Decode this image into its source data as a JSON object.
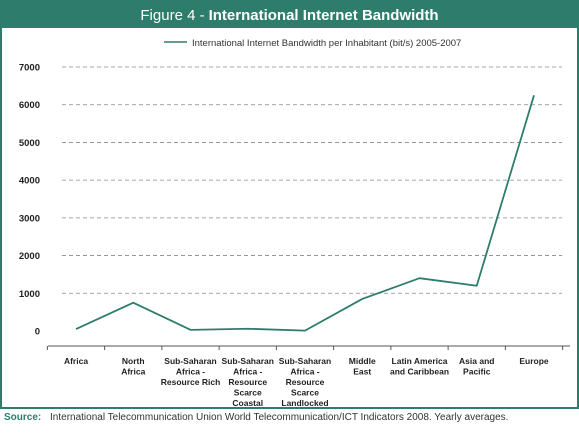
{
  "figure": {
    "prefix": "Figure 4 -",
    "title": "International Internet Bandwidth"
  },
  "source": {
    "label": "Source:",
    "text": "International Telecommunication Union World Telecommunication/ICT Indicators 2008. Yearly averages."
  },
  "colors": {
    "accent": "#2e7d6c",
    "line": "#2e7d6c",
    "grid": "#888888"
  },
  "chart_data": {
    "type": "line",
    "legend_position": "top-center",
    "grid": true,
    "ylim": [
      0,
      7000
    ],
    "yticks": [
      0,
      1000,
      2000,
      3000,
      4000,
      5000,
      6000,
      7000
    ],
    "categories": [
      [
        "Africa"
      ],
      [
        "North",
        "Africa"
      ],
      [
        "Sub-Saharan",
        "Africa -",
        "Resource Rich"
      ],
      [
        "Sub-Saharan",
        "Africa -",
        "Resource",
        "Scarce",
        "Coastal"
      ],
      [
        "Sub-Saharan",
        "Africa -",
        "Resource",
        "Scarce",
        "Landlocked"
      ],
      [
        "Middle",
        "East"
      ],
      [
        "Latin America",
        "and Caribbean"
      ],
      [
        "Asia and",
        "Pacific"
      ],
      [
        "Europe"
      ]
    ],
    "series": [
      {
        "name": "International Internet Bandwidth per Inhabitant (bit/s) 2005-2007",
        "values": [
          50,
          750,
          30,
          60,
          10,
          850,
          1400,
          1200,
          6250
        ]
      }
    ]
  }
}
